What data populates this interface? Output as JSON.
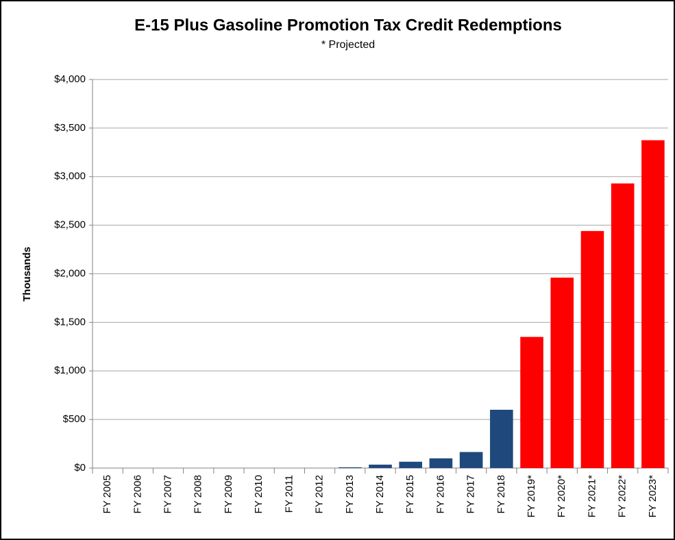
{
  "chart_data": {
    "type": "bar",
    "title": "E-15 Plus Gasoline Promotion Tax Credit Redemptions",
    "subtitle": "* Projected",
    "y_label": "Thousands",
    "categories": [
      "FY 2005",
      "FY 2006",
      "FY 2007",
      "FY 2008",
      "FY 2009",
      "FY 2010",
      "FY 2011",
      "FY 2012",
      "FY 2013",
      "FY 2014",
      "FY 2015",
      "FY 2016",
      "FY 2017",
      "FY 2018",
      "FY 2019*",
      "FY 2020*",
      "FY 2021*",
      "FY 2022*",
      "FY 2023*"
    ],
    "values": [
      0,
      0,
      0,
      0,
      0,
      0,
      0,
      0,
      8,
      35,
      65,
      100,
      165,
      600,
      1350,
      1960,
      2440,
      2930,
      3375
    ],
    "colors": [
      "#1f497d",
      "#1f497d",
      "#1f497d",
      "#1f497d",
      "#1f497d",
      "#1f497d",
      "#1f497d",
      "#1f497d",
      "#1f497d",
      "#1f497d",
      "#1f497d",
      "#1f497d",
      "#1f497d",
      "#1f497d",
      "#ff0000",
      "#ff0000",
      "#ff0000",
      "#ff0000",
      "#ff0000"
    ],
    "ylim": [
      0,
      4000
    ],
    "yticks": [
      {
        "value": 0,
        "label": "$0"
      },
      {
        "value": 500,
        "label": "$500"
      },
      {
        "value": 1000,
        "label": "$1,000"
      },
      {
        "value": 1500,
        "label": "$1,500"
      },
      {
        "value": 2000,
        "label": "$2,000"
      },
      {
        "value": 2500,
        "label": "$2,500"
      },
      {
        "value": 3000,
        "label": "$3,000"
      },
      {
        "value": 3500,
        "label": "$3,500"
      },
      {
        "value": 4000,
        "label": "$4,000"
      }
    ],
    "grid": true
  }
}
